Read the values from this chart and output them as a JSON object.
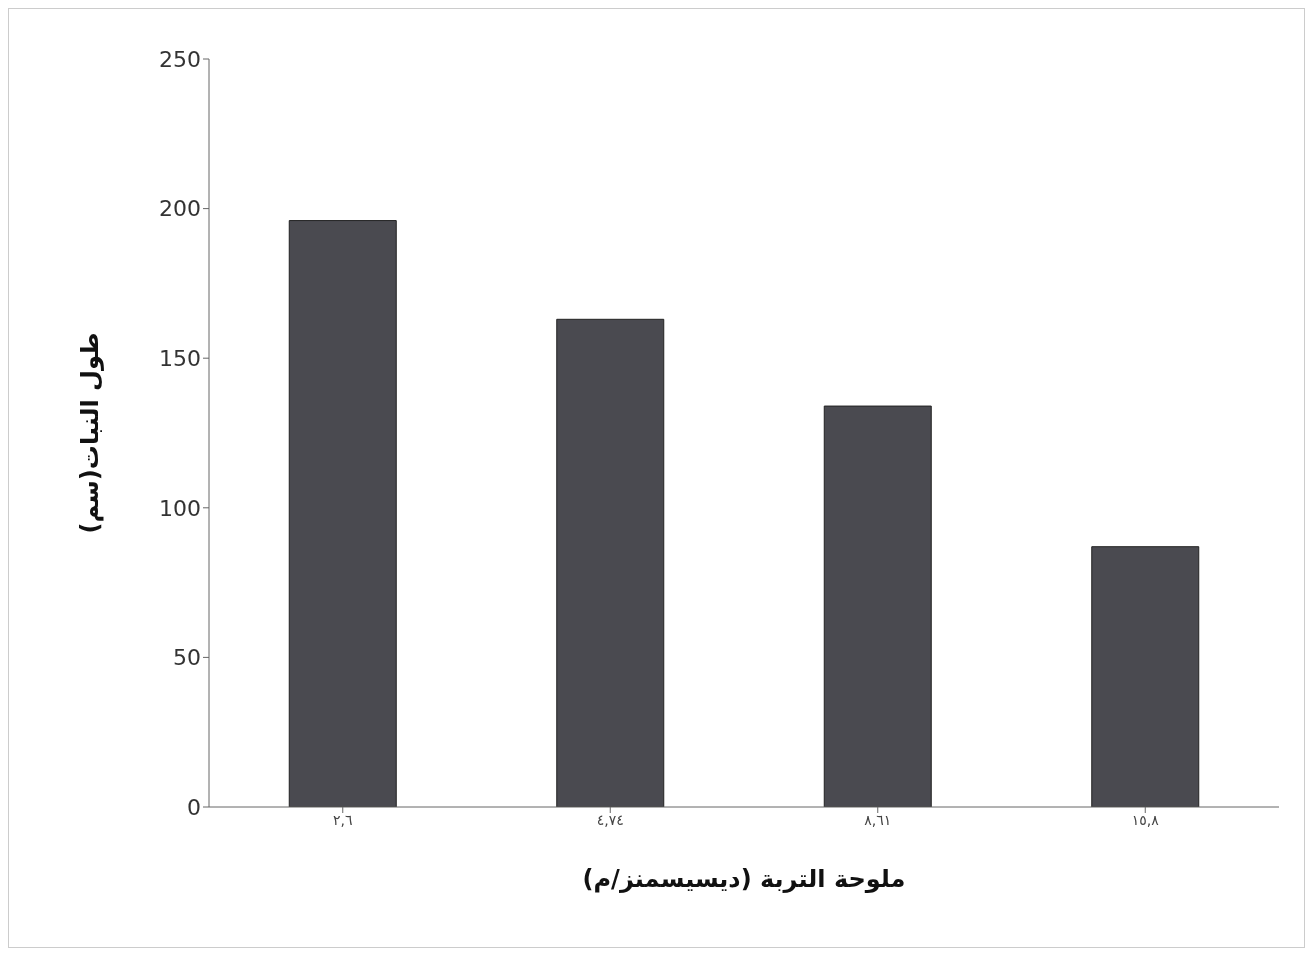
{
  "chart_data": {
    "type": "bar",
    "xlabel": "ملوحة التربة    (ديسيسمنز/م)",
    "ylabel": "طول النبات(سم)",
    "categories": [
      "٢,٦",
      "٤,٧٤",
      "٨,٦١",
      "١٥,٨"
    ],
    "values": [
      196,
      163,
      134,
      87
    ],
    "color": "#4a4a50",
    "ylim": [
      0,
      250
    ],
    "yticks": [
      0,
      50,
      100,
      150,
      200,
      250
    ],
    "grid": false,
    "legend": false
  }
}
